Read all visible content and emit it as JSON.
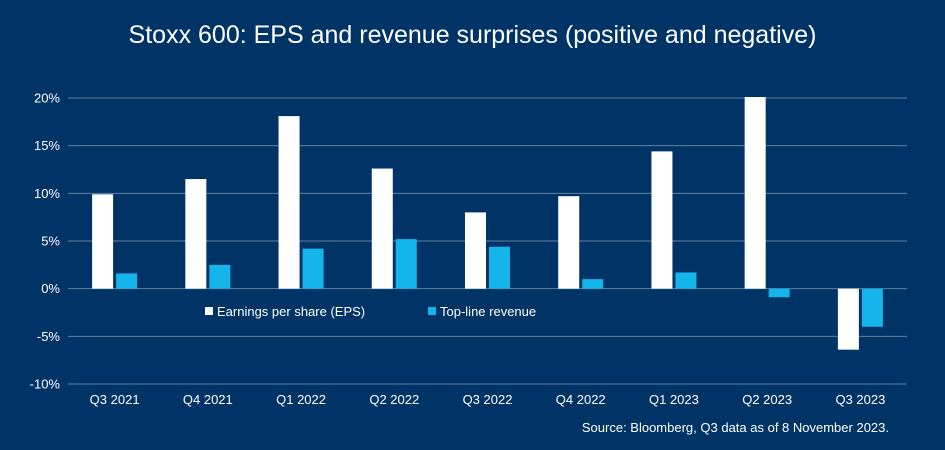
{
  "colors": {
    "background": "#003466",
    "gridline": "#5f7fa3",
    "eps": "#ffffff",
    "revenue": "#13b5ea"
  },
  "chart_data": {
    "type": "bar",
    "title": "Stoxx 600: EPS and revenue surprises (positive and negative)",
    "categories": [
      "Q3 2021",
      "Q4 2021",
      "Q1 2022",
      "Q2 2022",
      "Q3 2022",
      "Q4 2022",
      "Q1 2023",
      "Q2 2023",
      "Q3 2023"
    ],
    "series": [
      {
        "name": "Earnings per share (EPS)",
        "color": "#ffffff",
        "values": [
          9.9,
          11.5,
          18.1,
          12.6,
          8.0,
          9.7,
          14.4,
          20.1,
          -6.4
        ]
      },
      {
        "name": "Top-line revenue",
        "color": "#13b5ea",
        "values": [
          1.6,
          2.5,
          4.2,
          5.2,
          4.4,
          1.0,
          1.7,
          -0.9,
          -4.0
        ]
      }
    ],
    "ylim": [
      -10,
      20
    ],
    "yticks": [
      -10,
      -5,
      0,
      5,
      10,
      15,
      20
    ],
    "ytick_labels": [
      "-10%",
      "-5%",
      "0%",
      "5%",
      "10%",
      "15%",
      "20%"
    ],
    "grid": true,
    "legend_position": "inside, just below zero line, left-center",
    "source": "Source: Bloomberg, Q3 data as of 8 November 2023."
  }
}
